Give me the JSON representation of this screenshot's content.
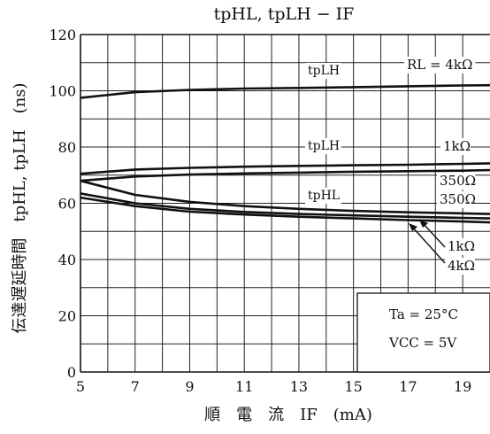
{
  "chart_data": {
    "type": "line",
    "title": "tpHL, tpLH − IF",
    "xlabel": "順　電　流　IF　(mA)",
    "ylabel": "伝達遅延時間　tpHL, tpLH　(ns)",
    "xlim": [
      5,
      20
    ],
    "ylim": [
      0,
      120
    ],
    "xticks": [
      5,
      7,
      9,
      11,
      13,
      15,
      17,
      19
    ],
    "yticks": [
      0,
      20,
      40,
      60,
      80,
      100,
      120
    ],
    "grid": true,
    "series": [
      {
        "name": "tpLH RL=4kΩ",
        "x": [
          5,
          7,
          9,
          11,
          13,
          15,
          17,
          19,
          20
        ],
        "values": [
          97.5,
          99.5,
          100.3,
          100.8,
          101.0,
          101.3,
          101.6,
          101.9,
          102.0
        ]
      },
      {
        "name": "tpLH RL=1kΩ",
        "x": [
          5,
          7,
          9,
          11,
          13,
          15,
          17,
          19,
          20
        ],
        "values": [
          70.5,
          72.0,
          72.6,
          73.0,
          73.3,
          73.5,
          73.7,
          74.0,
          74.2
        ]
      },
      {
        "name": "tpLH RL=350Ω",
        "x": [
          5,
          7,
          9,
          11,
          13,
          15,
          17,
          19,
          20
        ],
        "values": [
          68.0,
          69.5,
          70.2,
          70.6,
          70.9,
          71.2,
          71.4,
          71.6,
          71.8
        ]
      },
      {
        "name": "tpHL RL=350Ω",
        "x": [
          5,
          7,
          9,
          11,
          13,
          15,
          17,
          19,
          20
        ],
        "values": [
          68.0,
          63.0,
          60.5,
          59.0,
          58.0,
          57.3,
          56.8,
          56.4,
          56.2
        ]
      },
      {
        "name": "tpHL RL=1kΩ",
        "x": [
          5,
          7,
          9,
          11,
          13,
          15,
          17,
          19,
          20
        ],
        "values": [
          63.5,
          60.0,
          58.0,
          56.9,
          56.2,
          55.7,
          55.2,
          54.8,
          54.6
        ]
      },
      {
        "name": "tpHL RL=4kΩ",
        "x": [
          5,
          7,
          9,
          11,
          13,
          15,
          17,
          19,
          20
        ],
        "values": [
          62.0,
          59.0,
          57.0,
          56.0,
          55.2,
          54.6,
          54.0,
          53.5,
          53.2
        ]
      }
    ],
    "annotations": {
      "tplh_4k": "tpLH",
      "rl_4k": "RL = 4kΩ",
      "tplh_1k": "tpLH",
      "r_1k_upper": "1kΩ",
      "r_350_upper": "350Ω",
      "tphl_350": "tpHL",
      "r_350_lower": "350Ω",
      "r_1k_lower": "1kΩ",
      "r_4k_lower": "4kΩ"
    },
    "conditions": {
      "ta": "Ta = 25°C",
      "vcc": "VCC = 5V"
    }
  }
}
